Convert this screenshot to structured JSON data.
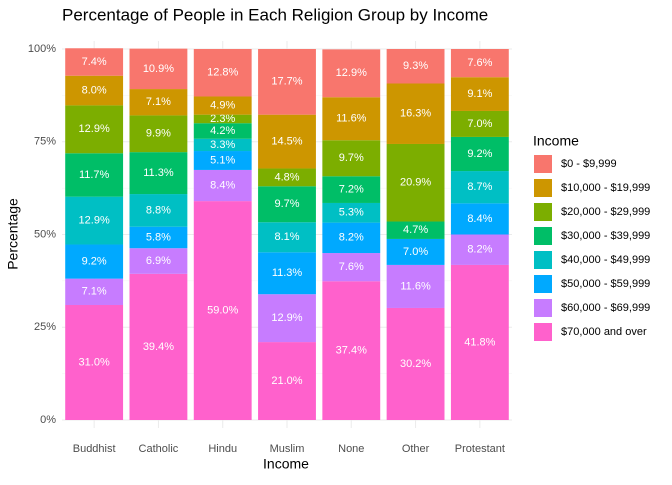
{
  "chart_data": {
    "type": "stacked_bar",
    "title": "Percentage of People in Each Religion Group by Income",
    "x_label": "Income",
    "y_label": "Percentage",
    "legend_title": "Income",
    "legend_position": "right",
    "grid": true,
    "categories": [
      "Buddhist",
      "Catholic",
      "Hindu",
      "Muslim",
      "None",
      "Other",
      "Protestant"
    ],
    "ylim": [
      0,
      100
    ],
    "yticks": [
      {
        "value": 0,
        "label": "0%"
      },
      {
        "value": 25,
        "label": "25%"
      },
      {
        "value": 50,
        "label": "50%"
      },
      {
        "value": 75,
        "label": "75%"
      },
      {
        "value": 100,
        "label": "100%"
      }
    ],
    "series": [
      {
        "name": "$0 - $9,999",
        "color": "#F8766D",
        "values": [
          7.4,
          10.9,
          12.8,
          17.7,
          12.9,
          9.3,
          7.6
        ],
        "value_labels": [
          "7.4%",
          "10.9%",
          "12.8%",
          "17.7%",
          "12.9%",
          "9.3%",
          "7.6%"
        ]
      },
      {
        "name": "$10,000 - $19,999",
        "color": "#CD9600",
        "values": [
          8.0,
          7.1,
          4.9,
          14.5,
          11.6,
          16.3,
          9.1
        ],
        "value_labels": [
          "8.0%",
          "7.1%",
          "4.9%",
          "14.5%",
          "11.6%",
          "16.3%",
          "9.1%"
        ]
      },
      {
        "name": "$20,000 - $29,999",
        "color": "#7CAE00",
        "values": [
          12.9,
          9.9,
          2.3,
          4.8,
          9.7,
          20.9,
          7.0
        ],
        "value_labels": [
          "12.9%",
          "9.9%",
          "2.3%",
          "4.8%",
          "9.7%",
          "20.9%",
          "7.0%"
        ]
      },
      {
        "name": "$30,000 - $39,999",
        "color": "#00BE67",
        "values": [
          11.7,
          11.3,
          4.2,
          9.7,
          7.2,
          4.7,
          9.2
        ],
        "value_labels": [
          "11.7%",
          "11.3%",
          "4.2%",
          "9.7%",
          "7.2%",
          "4.7%",
          "9.2%"
        ]
      },
      {
        "name": "$40,000 - $49,999",
        "color": "#00BFC4",
        "values": [
          12.9,
          8.8,
          3.3,
          8.1,
          5.3,
          null,
          8.7
        ],
        "value_labels": [
          "12.9%",
          "8.8%",
          "3.3%",
          "8.1%",
          "5.3%",
          null,
          "8.7%"
        ]
      },
      {
        "name": "$50,000 - $59,999",
        "color": "#00A9FF",
        "values": [
          9.2,
          5.8,
          5.1,
          11.3,
          8.2,
          7.0,
          8.4
        ],
        "value_labels": [
          "9.2%",
          "5.8%",
          "5.1%",
          "11.3%",
          "8.2%",
          "7.0%",
          "8.4%"
        ]
      },
      {
        "name": "$60,000 - $69,999",
        "color": "#C77CFF",
        "values": [
          7.1,
          6.9,
          8.4,
          12.9,
          7.6,
          11.6,
          8.2
        ],
        "value_labels": [
          "7.1%",
          "6.9%",
          "8.4%",
          "12.9%",
          "7.6%",
          "11.6%",
          "8.2%"
        ]
      },
      {
        "name": "$70,000 and over",
        "color": "#FF61CC",
        "values": [
          31.0,
          39.4,
          59.0,
          21.0,
          37.4,
          30.2,
          41.8
        ],
        "value_labels": [
          "31.0%",
          "39.4%",
          "59.0%",
          "21.0%",
          "37.4%",
          "30.2%",
          "41.8%"
        ]
      }
    ]
  }
}
